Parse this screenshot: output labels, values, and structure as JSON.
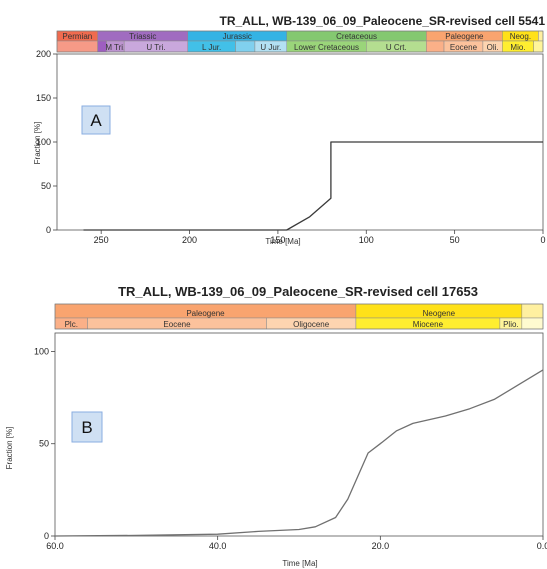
{
  "chart_data": [
    {
      "type": "line",
      "panel_label": "A",
      "title": "TR_ALL, WB-139_06_09_Paleocene_SR-revised cell 5541",
      "xlabel": "Time [Ma]",
      "ylabel": "Fraction [%]",
      "xlim": [
        275,
        0
      ],
      "ylim": [
        0,
        200
      ],
      "x_ticks": [
        {
          "value": 250,
          "label": "250"
        },
        {
          "value": 200,
          "label": "200"
        },
        {
          "value": 150,
          "label": "150"
        },
        {
          "value": 100,
          "label": "100"
        },
        {
          "value": 50,
          "label": "50"
        },
        {
          "value": 0,
          "label": "0"
        }
      ],
      "y_ticks": [
        {
          "value": 0,
          "label": "0"
        },
        {
          "value": 50,
          "label": "50"
        },
        {
          "value": 100,
          "label": "100"
        },
        {
          "value": 150,
          "label": "150"
        },
        {
          "value": 200,
          "label": "200"
        }
      ],
      "grid": false,
      "series": [
        {
          "color": "#3a3a3a",
          "points": [
            [
              260,
              0
            ],
            [
              145,
              0
            ],
            [
              132,
              15
            ],
            [
              120,
              36
            ],
            [
              120,
              100
            ],
            [
              0,
              100
            ]
          ]
        }
      ],
      "periods": [
        {
          "label": "Permian",
          "start": 275,
          "end": 252,
          "color": "#f06b4f"
        },
        {
          "label": "Triassic",
          "start": 252,
          "end": 201,
          "color": "#a06cc0"
        },
        {
          "label": "Jurassic",
          "start": 201,
          "end": 145,
          "color": "#34b3e4"
        },
        {
          "label": "Cretaceous",
          "start": 145,
          "end": 66,
          "color": "#84c870"
        },
        {
          "label": "Paleogene",
          "start": 66,
          "end": 23,
          "color": "#f9a46f"
        },
        {
          "label": "Neog.",
          "start": 23,
          "end": 2.6,
          "color": "#ffe119"
        },
        {
          "label": "",
          "start": 2.6,
          "end": 0,
          "color": "#fff0a0"
        }
      ],
      "epochs": [
        {
          "label": "",
          "start": 275,
          "end": 252,
          "color": "#f69a87"
        },
        {
          "label": "",
          "start": 252,
          "end": 247,
          "color": "#9e5ec0"
        },
        {
          "label": "M Tri.",
          "start": 247,
          "end": 237,
          "color": "#bd94d0"
        },
        {
          "label": "U Tri.",
          "start": 237,
          "end": 201,
          "color": "#c9a8dc"
        },
        {
          "label": "L Jur.",
          "start": 201,
          "end": 174,
          "color": "#42c0e8"
        },
        {
          "label": "",
          "start": 174,
          "end": 163,
          "color": "#80d0ee"
        },
        {
          "label": "U Jur.",
          "start": 163,
          "end": 145,
          "color": "#b3e0f2"
        },
        {
          "label": "Lower Cretaceous",
          "start": 145,
          "end": 100,
          "color": "#9ad57a"
        },
        {
          "label": "U Crt.",
          "start": 100,
          "end": 66,
          "color": "#b4de90"
        },
        {
          "label": "",
          "start": 66,
          "end": 56,
          "color": "#fbb088"
        },
        {
          "label": "Eocene",
          "start": 56,
          "end": 34,
          "color": "#fcc29c"
        },
        {
          "label": "Oli.",
          "start": 34,
          "end": 23,
          "color": "#fdd4b0"
        },
        {
          "label": "Mio.",
          "start": 23,
          "end": 5.3,
          "color": "#ffee30"
        },
        {
          "label": "",
          "start": 5.3,
          "end": 0,
          "color": "#fff59a"
        }
      ]
    },
    {
      "type": "line",
      "panel_label": "B",
      "title": "TR_ALL, WB-139_06_09_Paleocene_SR-revised cell 17653",
      "xlabel": "Time [Ma]",
      "ylabel": "Fraction [%]",
      "xlim": [
        60,
        0
      ],
      "ylim": [
        0,
        110
      ],
      "x_ticks": [
        {
          "value": 60,
          "label": "60.0"
        },
        {
          "value": 40,
          "label": "40.0"
        },
        {
          "value": 20,
          "label": "20.0"
        },
        {
          "value": 0,
          "label": "0.0"
        }
      ],
      "y_ticks": [
        {
          "value": 0,
          "label": "0"
        },
        {
          "value": 50,
          "label": "50"
        },
        {
          "value": 100,
          "label": "100"
        }
      ],
      "grid": false,
      "series": [
        {
          "color": "#707070",
          "points": [
            [
              60,
              0
            ],
            [
              50,
              0.3
            ],
            [
              40,
              1
            ],
            [
              35,
              2.5
            ],
            [
              30,
              3.5
            ],
            [
              28,
              5
            ],
            [
              25.5,
              10
            ],
            [
              24,
              20
            ],
            [
              22.5,
              35
            ],
            [
              21.5,
              45
            ],
            [
              20,
              50
            ],
            [
              18,
              57
            ],
            [
              16,
              61
            ],
            [
              12,
              65
            ],
            [
              9,
              69
            ],
            [
              6,
              74
            ],
            [
              3,
              82
            ],
            [
              0,
              90
            ]
          ]
        }
      ],
      "periods": [
        {
          "label": "Paleogene",
          "start": 60,
          "end": 23,
          "color": "#f9a46f"
        },
        {
          "label": "Neogene",
          "start": 23,
          "end": 2.6,
          "color": "#ffe119"
        },
        {
          "label": "",
          "start": 2.6,
          "end": 0,
          "color": "#fff0a0"
        }
      ],
      "epochs": [
        {
          "label": "Plc.",
          "start": 60,
          "end": 56,
          "color": "#fbb088"
        },
        {
          "label": "Eocene",
          "start": 56,
          "end": 34,
          "color": "#fcc29c"
        },
        {
          "label": "Oligocene",
          "start": 34,
          "end": 23,
          "color": "#fdd4b0"
        },
        {
          "label": "Miocene",
          "start": 23,
          "end": 5.3,
          "color": "#ffee30"
        },
        {
          "label": "Plio.",
          "start": 5.3,
          "end": 2.6,
          "color": "#fff59a"
        },
        {
          "label": "",
          "start": 2.6,
          "end": 0,
          "color": "#fffbd0"
        }
      ]
    }
  ]
}
